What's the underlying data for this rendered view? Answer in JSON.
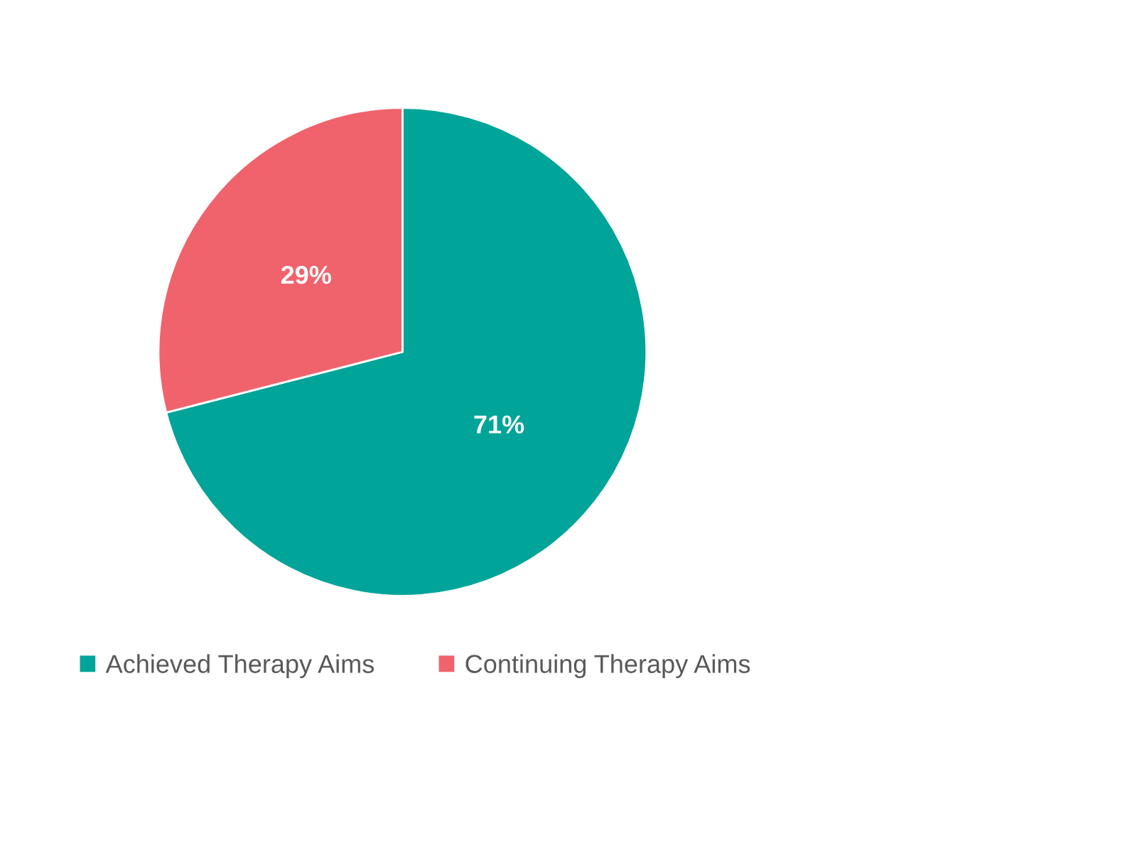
{
  "chart_data": {
    "type": "pie",
    "categories": [
      "Achieved Therapy Aims",
      "Continuing Therapy Aims"
    ],
    "values": [
      71,
      29
    ],
    "colors": [
      "#00a499",
      "#f0636c"
    ],
    "value_labels": [
      "71%",
      "29%"
    ],
    "legend": "bottom"
  }
}
